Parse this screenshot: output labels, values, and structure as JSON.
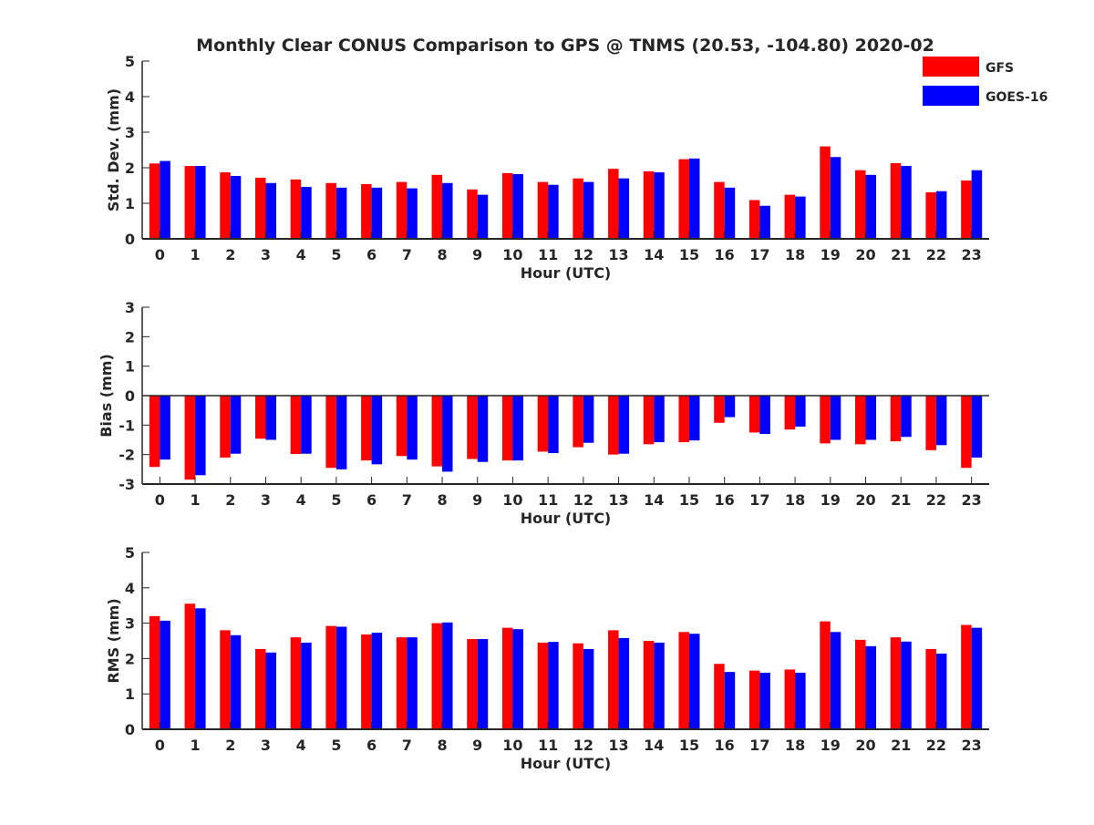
{
  "title": "Monthly Clear CONUS Comparison to GPS @ TNMS (20.53, -104.80) 2020-02",
  "legend": {
    "placement": "top-right",
    "entries": [
      {
        "name": "GFS",
        "color": "#ff0000"
      },
      {
        "name": "GOES-16",
        "color": "#0000ff"
      }
    ]
  },
  "chart_data": [
    {
      "type": "bar",
      "ylabel": "Std. Dev. (mm)",
      "xlabel": "Hour (UTC)",
      "ylim": [
        0,
        5
      ],
      "yticks": [
        0,
        1,
        2,
        3,
        4,
        5
      ],
      "categories": [
        "0",
        "1",
        "2",
        "3",
        "4",
        "5",
        "6",
        "7",
        "8",
        "9",
        "10",
        "11",
        "12",
        "13",
        "14",
        "15",
        "16",
        "17",
        "18",
        "19",
        "20",
        "21",
        "22",
        "23"
      ],
      "series": [
        {
          "name": "GFS",
          "color": "#ff0000",
          "values": [
            2.12,
            2.05,
            1.87,
            1.72,
            1.67,
            1.57,
            1.54,
            1.6,
            1.8,
            1.39,
            1.85,
            1.6,
            1.7,
            1.97,
            1.9,
            2.24,
            1.6,
            1.09,
            1.24,
            2.6,
            1.93,
            2.13,
            1.31,
            1.64
          ]
        },
        {
          "name": "GOES-16",
          "color": "#0000ff",
          "values": [
            2.19,
            2.05,
            1.77,
            1.57,
            1.46,
            1.44,
            1.44,
            1.42,
            1.57,
            1.24,
            1.82,
            1.52,
            1.6,
            1.7,
            1.87,
            2.26,
            1.44,
            0.93,
            1.19,
            2.3,
            1.8,
            2.05,
            1.34,
            1.93
          ]
        }
      ]
    },
    {
      "type": "bar",
      "ylabel": "Bias (mm)",
      "xlabel": "Hour (UTC)",
      "ylim": [
        -3,
        3
      ],
      "yticks": [
        -3,
        -2,
        -1,
        0,
        1,
        2,
        3
      ],
      "categories": [
        "0",
        "1",
        "2",
        "3",
        "4",
        "5",
        "6",
        "7",
        "8",
        "9",
        "10",
        "11",
        "12",
        "13",
        "14",
        "15",
        "16",
        "17",
        "18",
        "19",
        "20",
        "21",
        "22",
        "23"
      ],
      "series": [
        {
          "name": "GFS",
          "color": "#ff0000",
          "values": [
            -2.42,
            -2.85,
            -2.1,
            -1.46,
            -1.98,
            -2.45,
            -2.2,
            -2.05,
            -2.4,
            -2.15,
            -2.2,
            -1.9,
            -1.75,
            -2.0,
            -1.65,
            -1.58,
            -0.92,
            -1.25,
            -1.15,
            -1.62,
            -1.65,
            -1.55,
            -1.85,
            -2.45
          ]
        },
        {
          "name": "GOES-16",
          "color": "#0000ff",
          "values": [
            -2.17,
            -2.7,
            -1.97,
            -1.5,
            -1.97,
            -2.5,
            -2.33,
            -2.17,
            -2.58,
            -2.25,
            -2.2,
            -1.95,
            -1.6,
            -1.97,
            -1.58,
            -1.52,
            -0.73,
            -1.3,
            -1.05,
            -1.5,
            -1.5,
            -1.4,
            -1.68,
            -2.1
          ]
        }
      ]
    },
    {
      "type": "bar",
      "ylabel": "RMS (mm)",
      "xlabel": "Hour (UTC)",
      "ylim": [
        0,
        5
      ],
      "yticks": [
        0,
        1,
        2,
        3,
        4,
        5
      ],
      "categories": [
        "0",
        "1",
        "2",
        "3",
        "4",
        "5",
        "6",
        "7",
        "8",
        "9",
        "10",
        "11",
        "12",
        "13",
        "14",
        "15",
        "16",
        "17",
        "18",
        "19",
        "20",
        "21",
        "22",
        "23"
      ],
      "series": [
        {
          "name": "GFS",
          "color": "#ff0000",
          "values": [
            3.2,
            3.55,
            2.8,
            2.27,
            2.6,
            2.92,
            2.68,
            2.6,
            3.0,
            2.55,
            2.87,
            2.45,
            2.43,
            2.8,
            2.5,
            2.75,
            1.85,
            1.66,
            1.69,
            3.05,
            2.53,
            2.6,
            2.27,
            2.95
          ]
        },
        {
          "name": "GOES-16",
          "color": "#0000ff",
          "values": [
            3.07,
            3.42,
            2.66,
            2.17,
            2.45,
            2.9,
            2.73,
            2.6,
            3.02,
            2.55,
            2.83,
            2.47,
            2.27,
            2.58,
            2.45,
            2.7,
            1.62,
            1.6,
            1.6,
            2.75,
            2.35,
            2.48,
            2.14,
            2.87
          ]
        }
      ]
    }
  ]
}
